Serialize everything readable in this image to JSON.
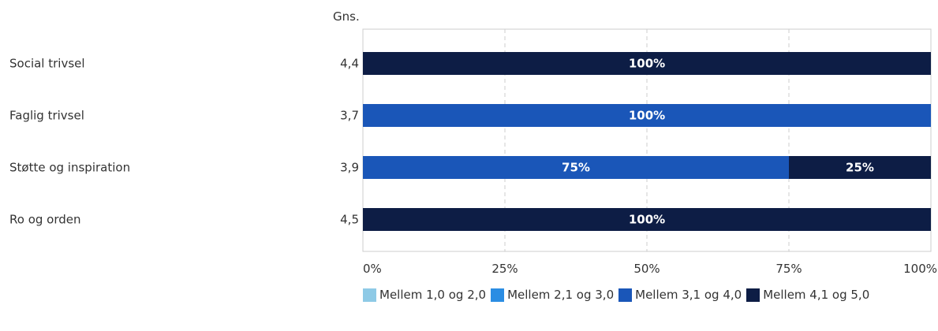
{
  "chart_data": {
    "type": "bar",
    "orientation": "horizontal",
    "stacked": true,
    "avg_header": "Gns.",
    "categories": [
      "Social trivsel",
      "Faglig trivsel",
      "Støtte og inspiration",
      "Ro og orden"
    ],
    "averages": [
      "4,4",
      "3,7",
      "3,9",
      "4,5"
    ],
    "series": [
      {
        "name": "Mellem 1,0 og 2,0",
        "color": "#8ecae6",
        "values": [
          0,
          0,
          0,
          0
        ]
      },
      {
        "name": "Mellem 2,1 og 3,0",
        "color": "#2b8de3",
        "values": [
          0,
          0,
          0,
          0
        ]
      },
      {
        "name": "Mellem 3,1 og 4,0",
        "color": "#1a56b8",
        "values": [
          0,
          100,
          75,
          0
        ]
      },
      {
        "name": "Mellem 4,1 og 5,0",
        "color": "#0d1d45",
        "values": [
          100,
          0,
          25,
          100
        ]
      }
    ],
    "bar_labels": [
      [
        "100%"
      ],
      [
        "100%"
      ],
      [
        "75%",
        "25%"
      ],
      [
        "100%"
      ]
    ],
    "xticks": [
      "0%",
      "25%",
      "50%",
      "75%",
      "100%"
    ],
    "xlim": [
      0,
      100
    ],
    "grid": true,
    "legend_position": "bottom"
  }
}
